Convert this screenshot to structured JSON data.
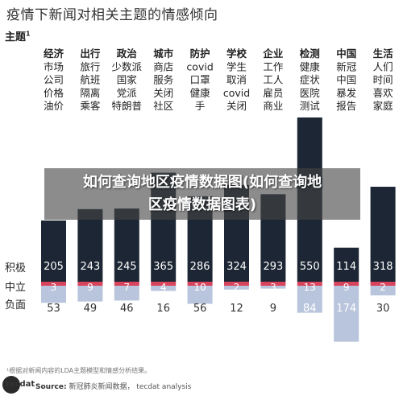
{
  "header": {
    "title": "疫情下新闻对相关主题的情感倾向",
    "topic_label": "主题",
    "topic_sup": "1"
  },
  "row_labels": {
    "positive": "积极",
    "neutral": "中立",
    "negative": "负面"
  },
  "overlay": {
    "line1": "如何查询地区疫情数据图(如何查询地",
    "line2": "区疫情数据图表)"
  },
  "footnote": "¹根据对新闻内容的LDA主题模型和情感分析结果。",
  "footer": {
    "logo": "tecdat",
    "source_label": "Source:",
    "source_text": "新冠肺炎新闻数据， tecdat analysis"
  },
  "colors": {
    "positive": "#1c2634",
    "neutral": "#d9445d",
    "negative": "#b9c5dc",
    "positive_text": "#ffffff",
    "negative_text": "#333333"
  },
  "chart_data": {
    "type": "bar",
    "layout": "diverging-stacked",
    "categories": [
      [
        "经济",
        "市场",
        "公司",
        "价格",
        "油价"
      ],
      [
        "出行",
        "旅行",
        "航班",
        "隔离",
        "乘客"
      ],
      [
        "政治",
        "少数派",
        "国家",
        "党派",
        "特朗普"
      ],
      [
        "城市",
        "商店",
        "服务",
        "关闭",
        "社区"
      ],
      [
        "防护",
        "covid",
        "口罩",
        "健康",
        "手"
      ],
      [
        "学校",
        "学生",
        "取消",
        "covid",
        "关闭"
      ],
      [
        "企业",
        "工作",
        "工人",
        "雇员",
        "商业"
      ],
      [
        "检测",
        "健康",
        "症状",
        "医院",
        "测试"
      ],
      [
        "中国",
        "新冠",
        "中国",
        "暴发",
        "报告"
      ],
      [
        "生活",
        "人们",
        "时间",
        "喜欢",
        "家庭"
      ]
    ],
    "series": [
      {
        "name": "积极",
        "values": [
          205,
          243,
          245,
          365,
          286,
          324,
          293,
          550,
          114,
          318
        ]
      },
      {
        "name": "中立",
        "values": [
          3,
          9,
          7,
          4,
          10,
          2,
          3,
          13,
          9,
          2
        ]
      },
      {
        "name": "负面",
        "values": [
          53,
          49,
          46,
          16,
          56,
          12,
          9,
          84,
          174,
          30
        ]
      }
    ]
  }
}
